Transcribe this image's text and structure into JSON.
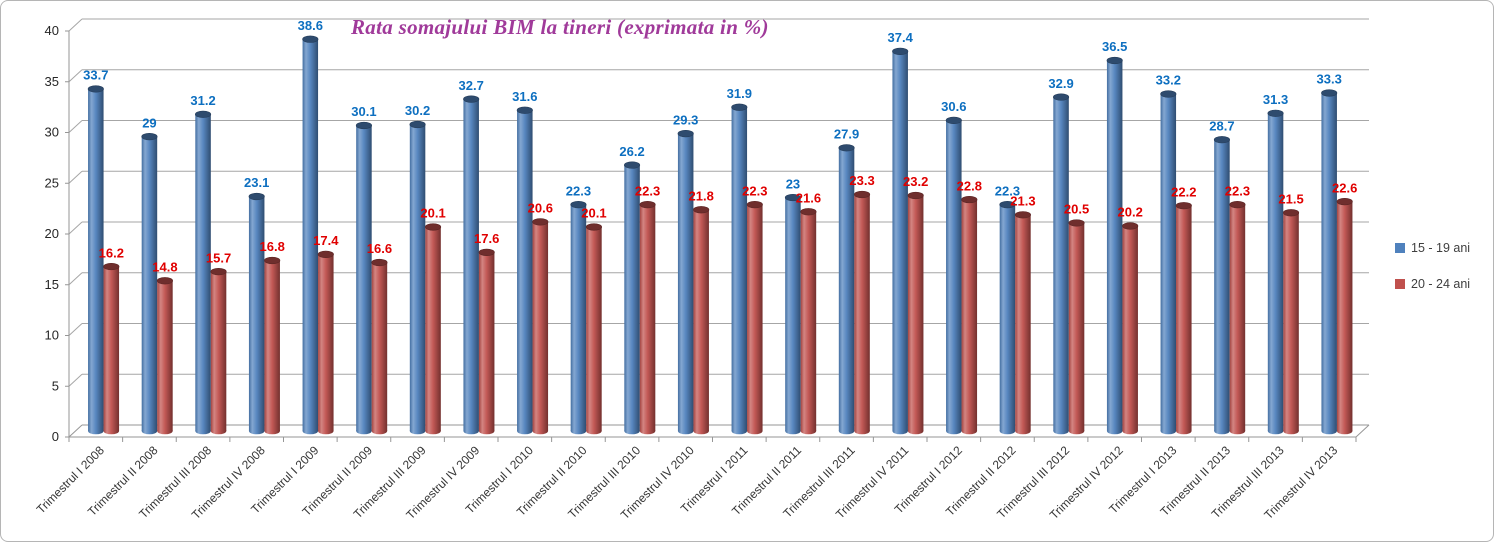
{
  "chart_data": {
    "type": "bar",
    "chart_style": "3d-cylinder",
    "title": "Rata somajului BIM la tineri (exprimata in %)",
    "title_color": "#a03a9a",
    "xlabel": "",
    "ylabel": "",
    "ylim": [
      0,
      40
    ],
    "ytick_step": 5,
    "grid": true,
    "grid_color": "#a6a6a6",
    "axis_color": "#969696",
    "tick_label_color": "#262626",
    "category_label_color": "#363636",
    "legend_position": "right",
    "background_color": "#ffffff",
    "categories": [
      "Trimestrul I 2008",
      "Trimestrul II 2008",
      "Trimestrul III 2008",
      "Trimestrul IV 2008",
      "Trimestrul I 2009",
      "Trimestrul II 2009",
      "Trimestrul III 2009",
      "Trimestrul IV 2009",
      "Trimestrul I 2010",
      "Trimestrul II 2010",
      "Trimestrul III 2010",
      "Trimestrul IV 2010",
      "Trimestrul I 2011",
      "Trimestrul II 2011",
      "Trimestrul III 2011",
      "Trimestrul IV 2011",
      "Trimestrul I 2012",
      "Trimestrul II 2012",
      "Trimestrul III 2012",
      "Trimestrul IV 2012",
      "Trimestrul I 2013",
      "Trimestrul II 2013",
      "Trimestrul III 2013",
      "Trimestrul IV 2013"
    ],
    "series": [
      {
        "name": "15 - 19 ani",
        "color": "#4f81bd",
        "label_color": "#0d6fc0",
        "values": [
          33.7,
          29,
          31.2,
          23.1,
          38.6,
          30.1,
          30.2,
          32.7,
          31.6,
          22.3,
          26.2,
          29.3,
          31.9,
          23,
          27.9,
          37.4,
          30.6,
          22.3,
          32.9,
          36.5,
          33.2,
          28.7,
          31.3,
          33.3
        ]
      },
      {
        "name": "20 - 24 ani",
        "color": "#c0504d",
        "label_color": "#e00000",
        "values": [
          16.2,
          14.8,
          15.7,
          16.8,
          17.4,
          16.6,
          20.1,
          17.6,
          20.6,
          20.1,
          22.3,
          21.8,
          22.3,
          21.6,
          23.3,
          23.2,
          22.8,
          21.3,
          20.5,
          20.2,
          22.2,
          22.3,
          21.5,
          22.6
        ]
      }
    ]
  }
}
